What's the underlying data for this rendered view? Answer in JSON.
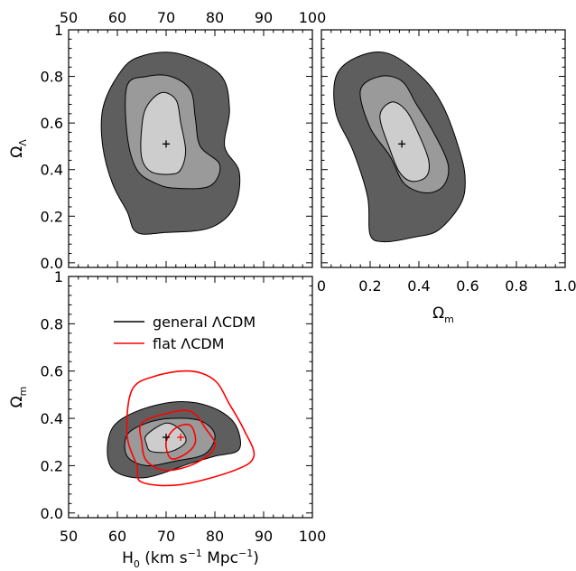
{
  "chart_data": [
    {
      "type": "contour",
      "panel": "top-left",
      "x": {
        "label": "",
        "range": [
          50,
          100
        ],
        "ticks": [
          50,
          60,
          70,
          80,
          90,
          100
        ],
        "tick_labels_position": "top"
      },
      "y": {
        "label": "Ω_Λ",
        "label_main": "Ω",
        "label_sub": "Λ",
        "range": [
          -0.02,
          1.0
        ],
        "ticks": [
          0.0,
          0.2,
          0.4,
          0.6,
          0.8,
          1.0
        ]
      },
      "best_fit": {
        "x": 70,
        "y": 0.51
      },
      "contours": [
        {
          "level": "outer",
          "fill": "#5e5e5e",
          "points": [
            [
              60,
              0.8
            ],
            [
              64,
              0.88
            ],
            [
              72,
              0.9
            ],
            [
              81,
              0.81
            ],
            [
              83,
              0.66
            ],
            [
              82,
              0.5
            ],
            [
              85,
              0.39
            ],
            [
              84,
              0.24
            ],
            [
              79,
              0.15
            ],
            [
              70,
              0.13
            ],
            [
              64,
              0.13
            ],
            [
              62,
              0.22
            ],
            [
              59,
              0.34
            ],
            [
              57,
              0.5
            ],
            [
              57,
              0.66
            ]
          ]
        },
        {
          "level": "middle",
          "fill": "#9a9a9a",
          "points": [
            [
              62,
              0.76
            ],
            [
              66,
              0.8
            ],
            [
              71,
              0.8
            ],
            [
              75,
              0.74
            ],
            [
              76,
              0.62
            ],
            [
              77,
              0.5
            ],
            [
              81,
              0.42
            ],
            [
              79,
              0.33
            ],
            [
              72,
              0.32
            ],
            [
              68,
              0.34
            ],
            [
              64,
              0.4
            ],
            [
              62,
              0.55
            ]
          ]
        },
        {
          "level": "inner",
          "fill": "#cdcdcd",
          "points": [
            [
              66,
              0.67
            ],
            [
              69,
              0.73
            ],
            [
              72,
              0.7
            ],
            [
              73,
              0.6
            ],
            [
              74,
              0.48
            ],
            [
              73,
              0.4
            ],
            [
              71,
              0.38
            ],
            [
              67,
              0.39
            ],
            [
              65,
              0.45
            ],
            [
              65,
              0.58
            ]
          ]
        }
      ]
    },
    {
      "type": "contour",
      "panel": "top-right",
      "x": {
        "label": "Ω_m",
        "label_main": "Ω",
        "label_sub": "m",
        "range": [
          0.0,
          1.0
        ],
        "ticks": [
          0.0,
          0.2,
          0.4,
          0.6,
          0.8,
          1.0
        ],
        "tick_labels": [
          "0",
          "0.2",
          "0.4",
          "0.6",
          "0.8",
          "1.0"
        ]
      },
      "y": {
        "label": "",
        "range": [
          -0.02,
          1.0
        ],
        "ticks": [
          0.0,
          0.2,
          0.4,
          0.6,
          0.8,
          1.0
        ]
      },
      "best_fit": {
        "x": 0.33,
        "y": 0.51
      },
      "contours": [
        {
          "level": "outer",
          "fill": "#5e5e5e",
          "points": [
            [
              0.06,
              0.8
            ],
            [
              0.14,
              0.88
            ],
            [
              0.27,
              0.9
            ],
            [
              0.41,
              0.8
            ],
            [
              0.5,
              0.67
            ],
            [
              0.57,
              0.47
            ],
            [
              0.59,
              0.35
            ],
            [
              0.57,
              0.25
            ],
            [
              0.48,
              0.14
            ],
            [
              0.38,
              0.11
            ],
            [
              0.26,
              0.09
            ],
            [
              0.2,
              0.12
            ],
            [
              0.19,
              0.28
            ],
            [
              0.13,
              0.48
            ],
            [
              0.06,
              0.64
            ]
          ]
        },
        {
          "level": "middle",
          "fill": "#9a9a9a",
          "points": [
            [
              0.16,
              0.74
            ],
            [
              0.24,
              0.8
            ],
            [
              0.33,
              0.78
            ],
            [
              0.39,
              0.68
            ],
            [
              0.46,
              0.56
            ],
            [
              0.52,
              0.42
            ],
            [
              0.5,
              0.33
            ],
            [
              0.43,
              0.3
            ],
            [
              0.34,
              0.34
            ],
            [
              0.28,
              0.46
            ],
            [
              0.2,
              0.58
            ]
          ]
        },
        {
          "level": "inner",
          "fill": "#cdcdcd",
          "points": [
            [
              0.24,
              0.63
            ],
            [
              0.29,
              0.69
            ],
            [
              0.35,
              0.65
            ],
            [
              0.4,
              0.55
            ],
            [
              0.44,
              0.44
            ],
            [
              0.43,
              0.37
            ],
            [
              0.37,
              0.35
            ],
            [
              0.32,
              0.39
            ],
            [
              0.28,
              0.49
            ]
          ]
        }
      ]
    },
    {
      "type": "contour",
      "panel": "bottom-left",
      "x": {
        "label": "H₀ (km s⁻¹ Mpc⁻¹)",
        "label_parts": [
          "H",
          "0",
          " (km s",
          "−1",
          " Mpc",
          "−1",
          ")"
        ],
        "range": [
          50,
          100
        ],
        "ticks": [
          50,
          60,
          70,
          80,
          90,
          100
        ]
      },
      "y": {
        "label": "Ω_m",
        "label_main": "Ω",
        "label_sub": "m",
        "range": [
          -0.02,
          1.0
        ],
        "ticks": [
          0.0,
          0.2,
          0.4,
          0.6,
          0.8,
          1.0
        ]
      },
      "legend": {
        "position": "top-left",
        "entries": [
          {
            "name": "general ΛCDM",
            "color": "#000000"
          },
          {
            "name": "flat ΛCDM",
            "color": "#ff0000"
          }
        ]
      },
      "best_fit": [
        {
          "series": "general ΛCDM",
          "x": 70,
          "y": 0.32,
          "color": "#000000"
        },
        {
          "series": "flat ΛCDM",
          "x": 73,
          "y": 0.32,
          "color": "#ff0000"
        }
      ],
      "contours": [
        {
          "level": "outer",
          "fill": "#5e5e5e",
          "points": [
            [
              59,
              0.36
            ],
            [
              64,
              0.43
            ],
            [
              72,
              0.47
            ],
            [
              79,
              0.45
            ],
            [
              84,
              0.38
            ],
            [
              85,
              0.27
            ],
            [
              80,
              0.24
            ],
            [
              75,
              0.21
            ],
            [
              66,
              0.15
            ],
            [
              60,
              0.17
            ],
            [
              58,
              0.24
            ]
          ]
        },
        {
          "level": "middle",
          "fill": "#9a9a9a",
          "points": [
            [
              62,
              0.33
            ],
            [
              66,
              0.38
            ],
            [
              71,
              0.4
            ],
            [
              77,
              0.39
            ],
            [
              80,
              0.33
            ],
            [
              78,
              0.25
            ],
            [
              72,
              0.22
            ],
            [
              66,
              0.2
            ],
            [
              62,
              0.24
            ]
          ]
        },
        {
          "level": "inner",
          "fill": "#cdcdcd",
          "points": [
            [
              66,
              0.33
            ],
            [
              70,
              0.38
            ],
            [
              73,
              0.35
            ],
            [
              74,
              0.3
            ],
            [
              71,
              0.26
            ],
            [
              67,
              0.26
            ],
            [
              66,
              0.29
            ]
          ]
        }
      ],
      "flat_contours": [
        {
          "level": "outer",
          "color": "#ff0000",
          "points": [
            [
              63,
              0.52
            ],
            [
              68,
              0.58
            ],
            [
              75,
              0.6
            ],
            [
              80,
              0.56
            ],
            [
              83,
              0.46
            ],
            [
              86,
              0.35
            ],
            [
              88,
              0.24
            ],
            [
              84,
              0.18
            ],
            [
              73,
              0.12
            ],
            [
              65,
              0.13
            ],
            [
              64,
              0.2
            ],
            [
              62,
              0.33
            ]
          ]
        },
        {
          "level": "middle",
          "color": "#ff0000",
          "points": [
            [
              65,
              0.38
            ],
            [
              70,
              0.42
            ],
            [
              75,
              0.43
            ],
            [
              78,
              0.36
            ],
            [
              80,
              0.28
            ],
            [
              76,
              0.21
            ],
            [
              70,
              0.18
            ],
            [
              66,
              0.22
            ],
            [
              65,
              0.3
            ]
          ]
        },
        {
          "level": "inner",
          "color": "#ff0000",
          "points": [
            [
              70,
              0.3
            ],
            [
              72,
              0.36
            ],
            [
              75,
              0.37
            ],
            [
              76,
              0.3
            ],
            [
              74,
              0.25
            ],
            [
              71,
              0.23
            ]
          ]
        }
      ]
    }
  ]
}
